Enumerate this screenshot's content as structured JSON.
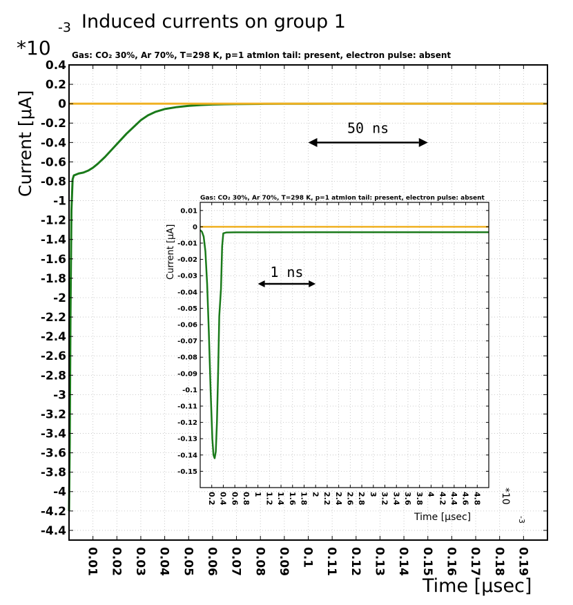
{
  "figure": {
    "title": "Induced currents on group 1",
    "colors": {
      "signal": "#1a7a1a",
      "baseline": "#f0b020",
      "grid": "#bbbbbb",
      "axis": "#000000"
    }
  },
  "chart_data": [
    {
      "type": "line",
      "role": "main",
      "subtitle": "Gas: CO₂ 30%, Ar 70%, T=298 K, p=1 atmIon tail: present, electron pulse: absent",
      "xlabel": "Time [μsec]",
      "ylabel": "Current [μA]",
      "y_multiplier": "*10",
      "y_multiplier_exp": "-3",
      "xlim": [
        0,
        0.2
      ],
      "ylim": [
        -4.5,
        0.4
      ],
      "x_ticks": [
        0.01,
        0.02,
        0.03,
        0.04,
        0.05,
        0.06,
        0.07,
        0.08,
        0.09,
        0.1,
        0.11,
        0.12,
        0.13,
        0.14,
        0.15,
        0.16,
        0.17,
        0.18,
        0.19
      ],
      "x_tick_labels": [
        "0.01",
        "0.02",
        "0.03",
        "0.04",
        "0.05",
        "0.06",
        "0.07",
        "0.08",
        "0.09",
        "0.1",
        "0.11",
        "0.12",
        "0.13",
        "0.14",
        "0.15",
        "0.16",
        "0.17",
        "0.18",
        "0.19"
      ],
      "y_ticks": [
        0.4,
        0.2,
        0,
        -0.2,
        -0.4,
        -0.6,
        -0.8,
        -1,
        -1.2,
        -1.4,
        -1.6,
        -1.8,
        -2,
        -2.2,
        -2.4,
        -2.6,
        -2.8,
        -3,
        -3.2,
        -3.4,
        -3.6,
        -3.8,
        -4,
        -4.2,
        -4.4
      ],
      "y_tick_labels": [
        "0.4",
        "0.2",
        "0",
        "-0.2",
        "-0.4",
        "-0.6",
        "-0.8",
        "-1",
        "-1.2",
        "-1.4",
        "-1.6",
        "-1.8",
        "-2",
        "-2.2",
        "-2.4",
        "-2.6",
        "-2.8",
        "-3",
        "-3.2",
        "-3.4",
        "-3.6",
        "-3.8",
        "-4",
        "-4.2",
        "-4.4"
      ],
      "grid": true,
      "series": [
        {
          "color": "#1a7a1a",
          "x": [
            0,
            0.0003,
            0.0006,
            0.001,
            0.0015,
            0.002,
            0.004,
            0.006,
            0.008,
            0.01,
            0.012,
            0.015,
            0.018,
            0.021,
            0.024,
            0.027,
            0.03,
            0.033,
            0.036,
            0.04,
            0.045,
            0.05,
            0.055,
            0.06,
            0.065,
            0.07,
            0.08,
            0.09,
            0.1,
            0.12,
            0.15,
            0.2
          ],
          "y": [
            -4.2,
            -3.5,
            -2.2,
            -1.1,
            -0.78,
            -0.74,
            -0.72,
            -0.71,
            -0.69,
            -0.66,
            -0.62,
            -0.55,
            -0.47,
            -0.39,
            -0.31,
            -0.24,
            -0.17,
            -0.12,
            -0.085,
            -0.055,
            -0.035,
            -0.022,
            -0.014,
            -0.009,
            -0.006,
            -0.004,
            -0.002,
            -0.001,
            -0.0005,
            0,
            0,
            0
          ]
        },
        {
          "color": "#f0b020",
          "x": [
            0,
            0.2
          ],
          "y": [
            0,
            0
          ]
        }
      ],
      "annotation": {
        "text": "50 ns",
        "x_from": 0.1,
        "x_to": 0.15,
        "y": -0.4
      }
    },
    {
      "type": "line",
      "role": "inset",
      "subtitle": "Gas: CO₂ 30%, Ar 70%, T=298 K, p=1 atmIon tail: present, electron pulse: absent",
      "xlabel": "Time [μsec]",
      "ylabel": "Current [μA]",
      "x_multiplier": "*10",
      "x_multiplier_exp": "-3",
      "xlim": [
        0,
        5
      ],
      "ylim": [
        -0.16,
        0.015
      ],
      "x_ticks": [
        0.2,
        0.4,
        0.6,
        0.8,
        1,
        1.2,
        1.4,
        1.6,
        1.8,
        2,
        2.2,
        2.4,
        2.6,
        2.8,
        3,
        3.2,
        3.4,
        3.6,
        3.8,
        4,
        4.2,
        4.4,
        4.6,
        4.8
      ],
      "x_tick_labels": [
        "0.2",
        "0.4",
        "0.6",
        "0.8",
        "1",
        "1.2",
        "1.4",
        "1.6",
        "1.8",
        "2",
        "2.2",
        "2.4",
        "2.6",
        "2.8",
        "3",
        "3.2",
        "3.4",
        "3.6",
        "3.8",
        "4",
        "4.2",
        "4.4",
        "4.6",
        "4.8"
      ],
      "y_ticks": [
        0.01,
        0,
        -0.01,
        -0.02,
        -0.03,
        -0.04,
        -0.05,
        -0.06,
        -0.07,
        -0.08,
        -0.09,
        -0.1,
        -0.11,
        -0.12,
        -0.13,
        -0.14,
        -0.15
      ],
      "y_tick_labels": [
        "0.01",
        "0",
        "-0.01",
        "-0.02",
        "-0.03",
        "-0.04",
        "-0.05",
        "-0.06",
        "-0.07",
        "-0.08",
        "-0.09",
        "-0.1",
        "-0.11",
        "-0.12",
        "-0.13",
        "-0.14",
        "-0.15"
      ],
      "grid": true,
      "series": [
        {
          "color": "#1a7a1a",
          "x": [
            0,
            0.03,
            0.06,
            0.09,
            0.12,
            0.15,
            0.18,
            0.21,
            0.23,
            0.25,
            0.27,
            0.29,
            0.31,
            0.33,
            0.36,
            0.38,
            0.4,
            0.45,
            0.6,
            1,
            2,
            3,
            4,
            5
          ],
          "y": [
            -0.002,
            -0.003,
            -0.006,
            -0.015,
            -0.035,
            -0.065,
            -0.1,
            -0.13,
            -0.14,
            -0.142,
            -0.138,
            -0.12,
            -0.09,
            -0.055,
            -0.038,
            -0.012,
            -0.004,
            -0.0035,
            -0.0034,
            -0.0034,
            -0.0033,
            -0.0033,
            -0.0033,
            -0.0033
          ]
        },
        {
          "color": "#f0b020",
          "x": [
            0,
            5
          ],
          "y": [
            0,
            0
          ]
        }
      ],
      "annotation": {
        "text": "1 ns",
        "x_from": 1,
        "x_to": 2,
        "y": -0.035
      }
    }
  ]
}
